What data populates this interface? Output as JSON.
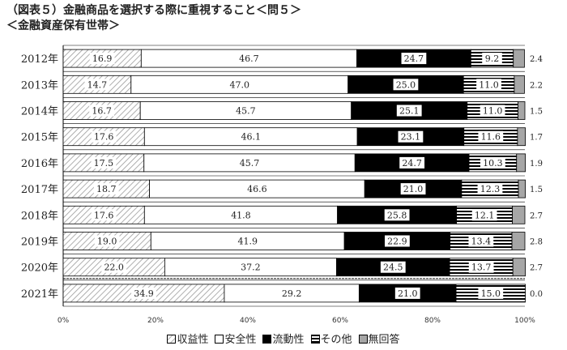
{
  "title": "（図表５）金融商品を選択する際に重視すること＜問５＞",
  "subtitle": "＜金融資産保有世帯＞",
  "chart_data": {
    "type": "bar",
    "orientation": "horizontal",
    "stacked": true,
    "categories": [
      "2012年",
      "2013年",
      "2014年",
      "2015年",
      "2016年",
      "2017年",
      "2018年",
      "2019年",
      "2020年",
      "2021年"
    ],
    "series": [
      {
        "name": "収益性",
        "pattern": "diagonal-hatch",
        "values": [
          16.9,
          14.7,
          16.7,
          17.6,
          17.5,
          18.7,
          17.6,
          19.0,
          22.0,
          34.9
        ]
      },
      {
        "name": "安全性",
        "pattern": "white",
        "values": [
          46.7,
          47.0,
          45.7,
          46.1,
          45.7,
          46.6,
          41.8,
          41.9,
          37.2,
          29.2
        ]
      },
      {
        "name": "流動性",
        "pattern": "black",
        "values": [
          24.7,
          25.0,
          25.1,
          23.1,
          24.7,
          21.0,
          25.8,
          22.9,
          24.5,
          21.0
        ]
      },
      {
        "name": "その他",
        "pattern": "horizontal-lines",
        "values": [
          9.2,
          11.0,
          11.0,
          11.6,
          10.3,
          12.3,
          12.1,
          13.4,
          13.7,
          15.0
        ]
      },
      {
        "name": "無回答",
        "pattern": "gray",
        "values": [
          2.4,
          2.2,
          1.5,
          1.7,
          1.9,
          1.5,
          2.7,
          2.8,
          2.7,
          0.0
        ]
      }
    ],
    "value_labels": [
      [
        "16.9",
        "46.7",
        "24.7",
        "9.2",
        "2.4"
      ],
      [
        "14.7",
        "47.0",
        "25.0",
        "11.0",
        "2.2"
      ],
      [
        "16.7",
        "45.7",
        "25.1",
        "11.0",
        "1.5"
      ],
      [
        "17.6",
        "46.1",
        "23.1",
        "11.6",
        "1.7"
      ],
      [
        "17.5",
        "45.7",
        "24.7",
        "10.3",
        "1.9"
      ],
      [
        "18.7",
        "46.6",
        "21.0",
        "12.3",
        "1.5"
      ],
      [
        "17.6",
        "41.8",
        "25.8",
        "12.1",
        "2.7"
      ],
      [
        "19.0",
        "41.9",
        "22.9",
        "13.4",
        "2.8"
      ],
      [
        "22.0",
        "37.2",
        "24.5",
        "13.7",
        "2.7"
      ],
      [
        "34.9",
        "29.2",
        "21.0",
        "15.0",
        "0.0"
      ]
    ],
    "x_axis": {
      "range": [
        0,
        100
      ],
      "tick_labels": [
        "0%",
        "20%",
        "40%",
        "60%",
        "80%",
        "100%"
      ]
    },
    "grid": false,
    "legend_position": "bottom",
    "colors": {
      "hatch": "#9a9a9a",
      "black": "#000000",
      "gray": "#a6a6a6",
      "line": "#000000"
    }
  }
}
